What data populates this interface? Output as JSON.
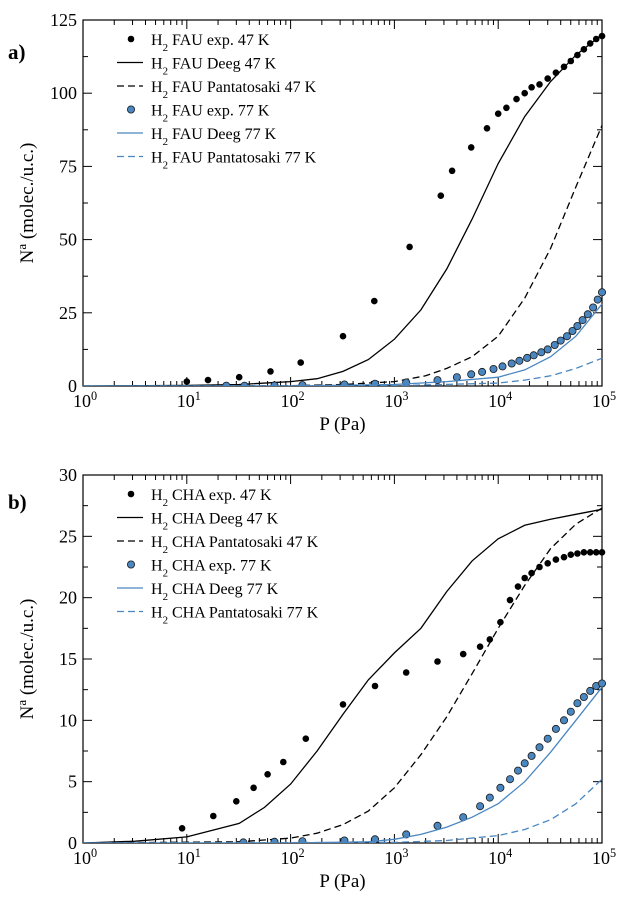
{
  "chart_data": [
    {
      "type": "scatter",
      "panel_label": "a)",
      "xlabel": "P (Pa)",
      "ylabel_main": "N",
      "ylabel_sup": "a",
      "ylabel_rest": " (molec./u.c.)",
      "xscale": "log",
      "xlim": [
        1,
        100000
      ],
      "ylim": [
        0,
        125
      ],
      "xticks": [
        1,
        10,
        100,
        1000,
        10000,
        100000
      ],
      "xtick_labels": [
        {
          "base": "10",
          "exp": "0"
        },
        {
          "base": "10",
          "exp": "1"
        },
        {
          "base": "10",
          "exp": "2"
        },
        {
          "base": "10",
          "exp": "3"
        },
        {
          "base": "10",
          "exp": "4"
        },
        {
          "base": "10",
          "exp": "5"
        }
      ],
      "yticks": [
        0,
        25,
        50,
        75,
        100,
        125
      ],
      "ytick_labels": [
        "0",
        "25",
        "50",
        "75",
        "100",
        "125"
      ],
      "grid": false,
      "legend_position": "top-left",
      "series": [
        {
          "kind": "points",
          "color": "#000000",
          "legend": {
            "pre": "H",
            "sub": "2",
            "post": " FAU exp. 47 K"
          },
          "x": [
            10,
            16,
            32,
            64,
            125,
            320,
            640,
            1400,
            2800,
            3600,
            5500,
            7800,
            10000,
            12000,
            15000,
            18000,
            21000,
            25000,
            30000,
            36000,
            43000,
            50000,
            58000,
            67000,
            77000,
            88000,
            100000
          ],
          "y": [
            1.5,
            2,
            3,
            5,
            8,
            17,
            29,
            47.5,
            65,
            73.5,
            81.5,
            88,
            93,
            95,
            98,
            100,
            102,
            103,
            105,
            107,
            109,
            111,
            113,
            115,
            117,
            118.5,
            119.5
          ]
        },
        {
          "kind": "line",
          "color": "#000000",
          "dash": "solid",
          "legend": {
            "pre": "H",
            "sub": "2",
            "post": " FAU Deeg 47 K"
          },
          "x": [
            1,
            10,
            32,
            100,
            180,
            320,
            560,
            1000,
            1800,
            3200,
            5600,
            10000,
            18000,
            32000,
            56000,
            100000
          ],
          "y": [
            0,
            0.2,
            0.5,
            1.5,
            2.5,
            5,
            9,
            16,
            26,
            40,
            57,
            76,
            92,
            104,
            113,
            120
          ]
        },
        {
          "kind": "line",
          "color": "#000000",
          "dash": "dashed",
          "legend": {
            "pre": "H",
            "sub": "2",
            "post": " FAU Pantatosaki 47 K"
          },
          "x": [
            1,
            100,
            320,
            1000,
            2000,
            3200,
            5600,
            10000,
            18000,
            32000,
            56000,
            100000
          ],
          "y": [
            0,
            0.1,
            0.5,
            1.5,
            3.5,
            6,
            10,
            17,
            30,
            47,
            68,
            89
          ]
        },
        {
          "kind": "points",
          "color": "#4a86c0",
          "legend": {
            "pre": "H",
            "sub": "2",
            "post": " FAU exp. 77 K"
          },
          "x": [
            24,
            36,
            70,
            130,
            330,
            650,
            1300,
            2600,
            4000,
            5500,
            7000,
            9000,
            11000,
            13500,
            16000,
            19000,
            22000,
            26000,
            30000,
            35000,
            40000,
            46000,
            52000,
            58000,
            65000,
            73000,
            82000,
            91000,
            100000
          ],
          "y": [
            0.1,
            0.1,
            0.2,
            0.3,
            0.5,
            0.8,
            1.2,
            2,
            3,
            4,
            4.8,
            5.8,
            6.7,
            7.7,
            8.6,
            9.6,
            10.5,
            11.5,
            12.5,
            14,
            15.5,
            17,
            18.8,
            20.5,
            22.5,
            24.5,
            26.8,
            29.5,
            32
          ]
        },
        {
          "kind": "line",
          "color": "#4a86c0",
          "dash": "solid",
          "legend": {
            "pre": "H",
            "sub": "2",
            "post": " FAU Deeg 77 K"
          },
          "x": [
            1,
            100,
            1000,
            3200,
            10000,
            18000,
            32000,
            56000,
            100000
          ],
          "y": [
            0,
            0,
            0.5,
            1.5,
            3,
            5.5,
            10,
            17,
            28
          ]
        },
        {
          "kind": "line",
          "color": "#4a86c0",
          "dash": "dashed",
          "legend": {
            "pre": "H",
            "sub": "2",
            "post": " FAU Pantatosaki 77 K"
          },
          "x": [
            1,
            1000,
            10000,
            18000,
            32000,
            56000,
            100000
          ],
          "y": [
            0,
            0.1,
            1,
            2,
            3.5,
            6,
            9.5
          ]
        }
      ]
    },
    {
      "type": "scatter",
      "panel_label": "b)",
      "xlabel": "P (Pa)",
      "ylabel_main": "N",
      "ylabel_sup": "a",
      "ylabel_rest": " (molec./u.c.)",
      "xscale": "log",
      "xlim": [
        1,
        100000
      ],
      "ylim": [
        0,
        30
      ],
      "xticks": [
        1,
        10,
        100,
        1000,
        10000,
        100000
      ],
      "xtick_labels": [
        {
          "base": "10",
          "exp": "0"
        },
        {
          "base": "10",
          "exp": "1"
        },
        {
          "base": "10",
          "exp": "2"
        },
        {
          "base": "10",
          "exp": "3"
        },
        {
          "base": "10",
          "exp": "4"
        },
        {
          "base": "10",
          "exp": "5"
        }
      ],
      "yticks": [
        0,
        5,
        10,
        15,
        20,
        25,
        30
      ],
      "ytick_labels": [
        "0",
        "5",
        "10",
        "15",
        "20",
        "25",
        "30"
      ],
      "grid": false,
      "legend_position": "top-left",
      "series": [
        {
          "kind": "points",
          "color": "#000000",
          "legend": {
            "pre": "H",
            "sub": "2",
            "post": " CHA exp. 47 K"
          },
          "x": [
            9,
            18,
            30,
            44,
            60,
            85,
            140,
            320,
            650,
            1300,
            2600,
            4600,
            6700,
            8300,
            10500,
            13000,
            15500,
            18000,
            21000,
            25000,
            30000,
            36000,
            43000,
            50000,
            58000,
            67000,
            77000,
            88000,
            100000
          ],
          "y": [
            1.2,
            2.2,
            3.4,
            4.5,
            5.6,
            6.6,
            8.5,
            11.3,
            12.8,
            13.9,
            14.8,
            15.4,
            16,
            16.6,
            18,
            19.8,
            20.9,
            21.6,
            22,
            22.5,
            22.8,
            23.1,
            23.3,
            23.5,
            23.6,
            23.7,
            23.7,
            23.7,
            23.7
          ]
        },
        {
          "kind": "line",
          "color": "#000000",
          "dash": "solid",
          "legend": {
            "pre": "H",
            "sub": "2",
            "post": " CHA Deeg 47 K"
          },
          "x": [
            1,
            3.2,
            10,
            32,
            56,
            100,
            180,
            320,
            560,
            1000,
            1800,
            3200,
            5600,
            10000,
            18000,
            32000,
            56000,
            100000
          ],
          "y": [
            0,
            0.15,
            0.5,
            1.6,
            2.9,
            4.8,
            7.5,
            10.5,
            13.3,
            15.5,
            17.5,
            20.5,
            23,
            24.8,
            25.9,
            26.4,
            26.8,
            27.2
          ]
        },
        {
          "kind": "line",
          "color": "#000000",
          "dash": "dashed",
          "legend": {
            "pre": "H",
            "sub": "2",
            "post": " CHA Pantatosaki 47 K"
          },
          "x": [
            1,
            32,
            100,
            180,
            320,
            560,
            1000,
            1800,
            3200,
            5600,
            10000,
            18000,
            32000,
            56000,
            100000
          ],
          "y": [
            0,
            0.1,
            0.4,
            0.8,
            1.5,
            2.6,
            4.5,
            7.2,
            10.3,
            13.8,
            17.5,
            21,
            24,
            26,
            27.3
          ]
        },
        {
          "kind": "points",
          "color": "#4a86c0",
          "legend": {
            "pre": "H",
            "sub": "2",
            "post": " CHA exp. 77 K"
          },
          "x": [
            35,
            70,
            130,
            330,
            650,
            1300,
            2600,
            4600,
            6700,
            8300,
            10500,
            13000,
            15500,
            18000,
            21000,
            25000,
            30000,
            36000,
            43000,
            50000,
            58000,
            67000,
            77000,
            88000,
            100000
          ],
          "y": [
            0.05,
            0.1,
            0.15,
            0.2,
            0.3,
            0.7,
            1.4,
            2.1,
            3,
            3.7,
            4.5,
            5.2,
            5.9,
            6.5,
            7.1,
            7.8,
            8.5,
            9.3,
            10,
            10.7,
            11.4,
            11.9,
            12.4,
            12.8,
            13
          ]
        },
        {
          "kind": "line",
          "color": "#4a86c0",
          "dash": "solid",
          "legend": {
            "pre": "H",
            "sub": "2",
            "post": " CHA Deeg 77 K"
          },
          "x": [
            1,
            100,
            560,
            1000,
            1800,
            3200,
            5600,
            10000,
            18000,
            32000,
            56000,
            100000
          ],
          "y": [
            0,
            0,
            0.1,
            0.3,
            0.7,
            1.3,
            2.1,
            3.2,
            5,
            7.4,
            10,
            12.7
          ]
        },
        {
          "kind": "line",
          "color": "#4a86c0",
          "dash": "dashed",
          "legend": {
            "pre": "H",
            "sub": "2",
            "post": " CHA Pantatosaki 77 K"
          },
          "x": [
            1,
            1000,
            3200,
            10000,
            18000,
            32000,
            56000,
            100000
          ],
          "y": [
            0,
            0.05,
            0.2,
            0.6,
            1.1,
            1.9,
            3.2,
            5.2
          ]
        }
      ]
    }
  ]
}
